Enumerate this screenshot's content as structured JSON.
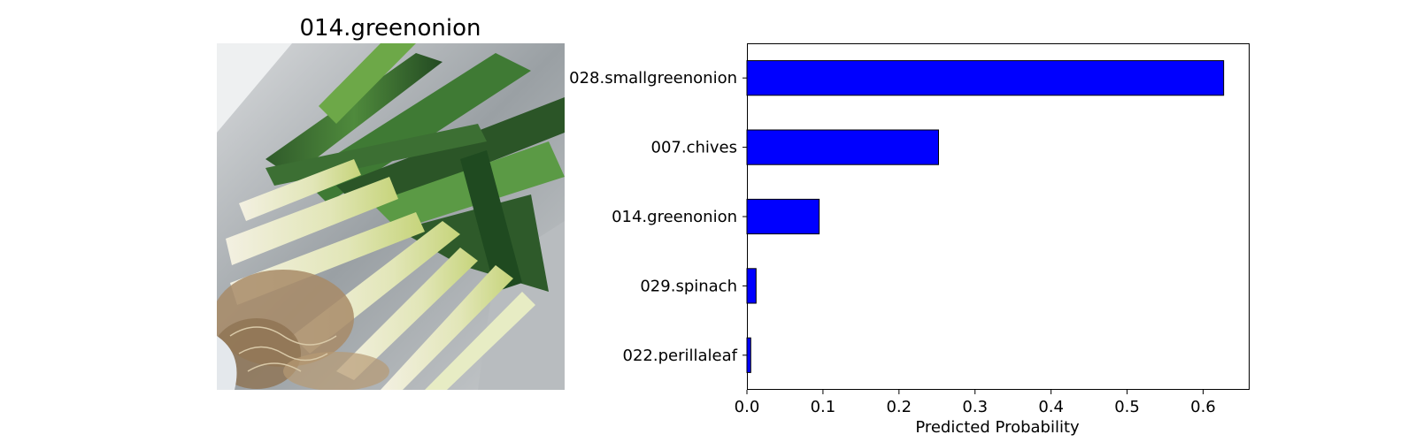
{
  "image_panel": {
    "title": "014.greenonion",
    "image_subject": "green-onion-bunch-photo"
  },
  "chart_data": {
    "type": "bar",
    "orientation": "horizontal",
    "categories": [
      "028.smallgreenonion",
      "007.chives",
      "014.greenonion",
      "029.spinach",
      "022.perillaleaf"
    ],
    "values": [
      0.627,
      0.252,
      0.095,
      0.012,
      0.005
    ],
    "xlabel": "Predicted Probability",
    "xlim": [
      0,
      0.66
    ],
    "xticks": [
      "0.0",
      "0.1",
      "0.2",
      "0.3",
      "0.4",
      "0.5",
      "0.6"
    ],
    "xtick_values": [
      0,
      0.1,
      0.2,
      0.3,
      0.4,
      0.5,
      0.6
    ],
    "grid": false,
    "bar_color": "#0000ff",
    "bar_edge_color": "#000000"
  }
}
